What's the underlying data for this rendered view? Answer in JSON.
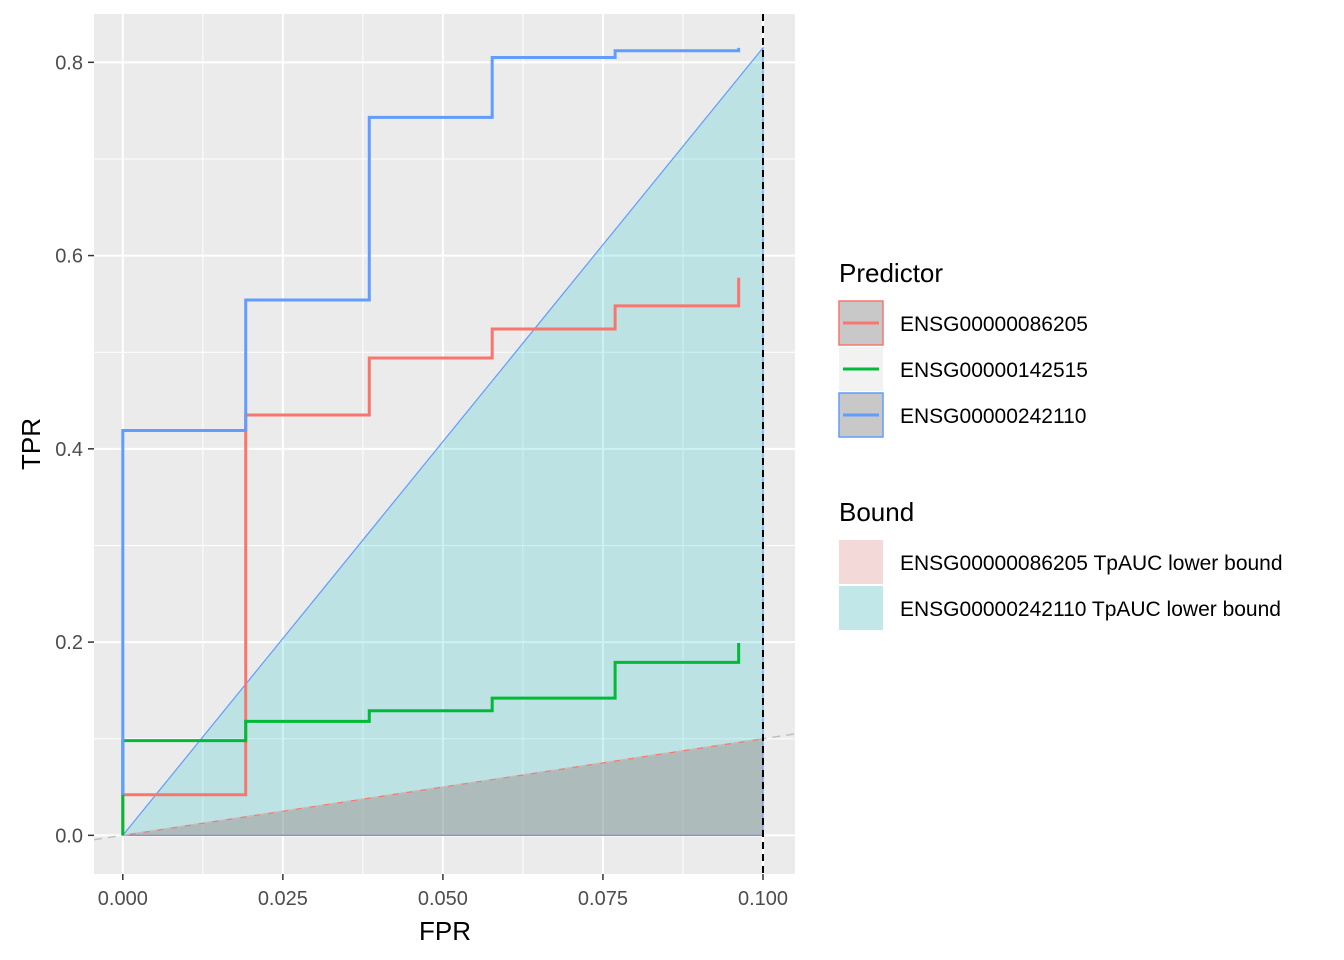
{
  "chart_data": {
    "type": "line",
    "xlabel": "FPR",
    "ylabel": "TPR",
    "xlim": [
      -0.0045,
      0.105
    ],
    "ylim": [
      -0.04,
      0.85
    ],
    "x_ticks": [
      0.0,
      0.025,
      0.05,
      0.075,
      0.1
    ],
    "x_tick_labels": [
      "0.000",
      "0.025",
      "0.050",
      "0.075",
      "0.100"
    ],
    "y_ticks": [
      0.0,
      0.2,
      0.4,
      0.6,
      0.8
    ],
    "y_tick_labels": [
      "0.0",
      "0.2",
      "0.4",
      "0.6",
      "0.8"
    ],
    "grid": true,
    "fpr_cutoff": 0.1,
    "series": [
      {
        "name": "ENSG00000086205",
        "color": "#F8766D",
        "x": [
          0.0,
          0.0,
          0.0192,
          0.0192,
          0.0385,
          0.0385,
          0.0577,
          0.0577,
          0.0769,
          0.0769,
          0.0962,
          0.0962
        ],
        "y": [
          0.0,
          0.042,
          0.042,
          0.435,
          0.435,
          0.494,
          0.494,
          0.524,
          0.524,
          0.548,
          0.548,
          0.577
        ]
      },
      {
        "name": "ENSG00000142515",
        "color": "#00BA38",
        "x": [
          0.0,
          0.0,
          0.0192,
          0.0192,
          0.0385,
          0.0385,
          0.0577,
          0.0577,
          0.0769,
          0.0769,
          0.0962,
          0.0962
        ],
        "y": [
          0.0,
          0.098,
          0.098,
          0.118,
          0.118,
          0.129,
          0.129,
          0.142,
          0.142,
          0.179,
          0.179,
          0.199
        ]
      },
      {
        "name": "ENSG00000242110",
        "color": "#619CFF",
        "x": [
          0.0,
          0.0,
          0.0192,
          0.0192,
          0.0385,
          0.0385,
          0.0577,
          0.0577,
          0.0769,
          0.0769,
          0.0962,
          0.0962
        ],
        "y": [
          0.042,
          0.419,
          0.419,
          0.554,
          0.554,
          0.743,
          0.743,
          0.805,
          0.805,
          0.812,
          0.812,
          0.815
        ]
      }
    ],
    "bounds": [
      {
        "name": "ENSG00000086205 TpAUC lower bound",
        "fill": "#F8766D",
        "fill_opacity": 0.2,
        "polygon": [
          [
            0.0,
            0.0
          ],
          [
            0.1,
            0.1
          ],
          [
            0.1,
            0.0
          ]
        ]
      },
      {
        "name": "ENSG00000242110 TpAUC lower bound",
        "fill": "#00BFC4",
        "fill_opacity": 0.2,
        "polygon": [
          [
            0.0,
            0.0
          ],
          [
            0.1,
            0.815
          ],
          [
            0.1,
            0.0
          ]
        ]
      }
    ],
    "reference_line": {
      "x": [
        -0.0045,
        0.105
      ],
      "y": [
        -0.0045,
        0.105
      ],
      "color": "#BFBFBF",
      "style": "dashed"
    },
    "legend": {
      "placement": "right",
      "predictor_title": "Predictor",
      "bound_title": "Bound"
    }
  }
}
